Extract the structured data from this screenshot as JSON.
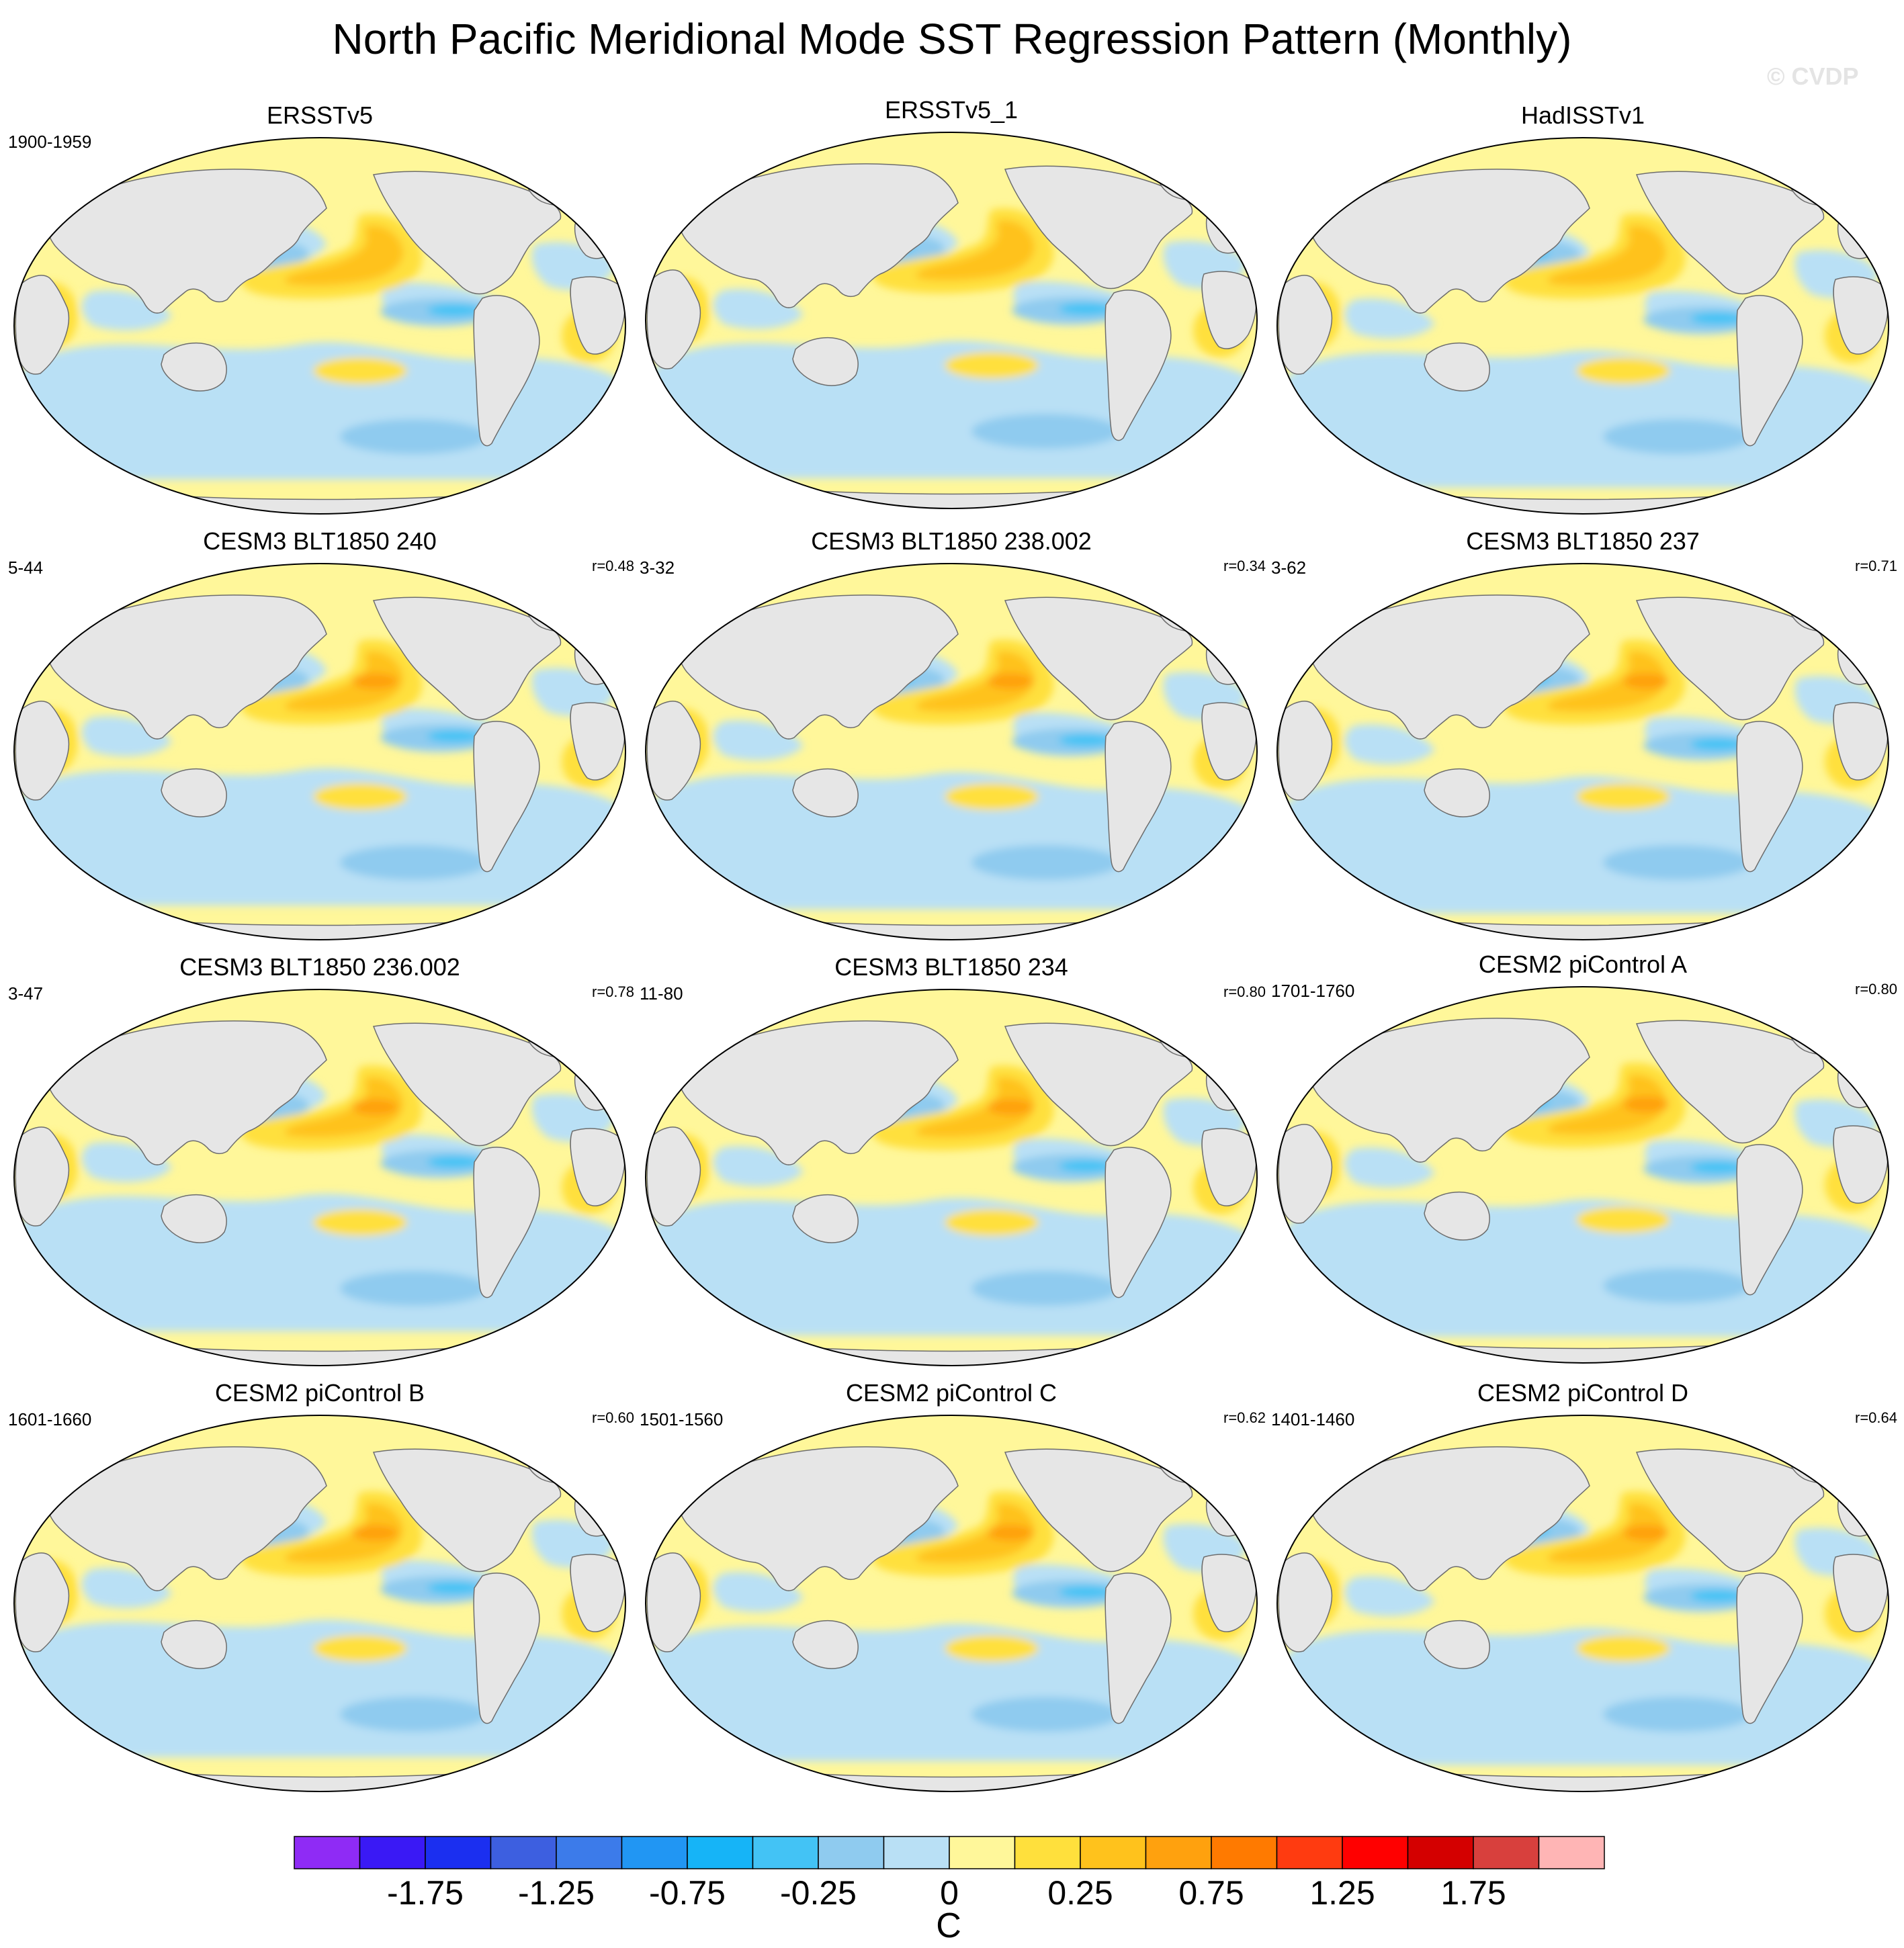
{
  "figure": {
    "title": "North Pacific Meridional Mode SST Regression Pattern (Monthly)",
    "watermark": "© CVDP"
  },
  "panels": [
    {
      "title": "ERSSTv5",
      "period": "1900-1959",
      "correlation": ""
    },
    {
      "title": "ERSSTv5_1",
      "period": "",
      "correlation": ""
    },
    {
      "title": "HadISSTv1",
      "period": "",
      "correlation": ""
    },
    {
      "title": "CESM3 BLT1850 240",
      "period": "5-44",
      "correlation": "r=0.48"
    },
    {
      "title": "CESM3 BLT1850 238.002",
      "period": "3-32",
      "correlation": "r=0.34"
    },
    {
      "title": "CESM3 BLT1850 237",
      "period": "3-62",
      "correlation": "r=0.71"
    },
    {
      "title": "CESM3 BLT1850 236.002",
      "period": "3-47",
      "correlation": "r=0.78"
    },
    {
      "title": "CESM3 BLT1850 234",
      "period": "11-80",
      "correlation": "r=0.80"
    },
    {
      "title": "CESM2 piControl A",
      "period": "1701-1760",
      "correlation": "r=0.80"
    },
    {
      "title": "CESM2 piControl B",
      "period": "1601-1660",
      "correlation": "r=0.60"
    },
    {
      "title": "CESM2 piControl C",
      "period": "1501-1560",
      "correlation": "r=0.62"
    },
    {
      "title": "CESM2 piControl D",
      "period": "1401-1460",
      "correlation": "r=0.64"
    }
  ],
  "colorbar": {
    "unit": "C",
    "tick_labels": [
      "-1.75",
      "-1.25",
      "-0.75",
      "-0.25",
      "0",
      "0.25",
      "0.75",
      "1.25",
      "1.75"
    ],
    "colors": [
      "#8f2bf5",
      "#3a19f5",
      "#1b2ff0",
      "#3d5fe0",
      "#3c7bea",
      "#2196f3",
      "#16b4f7",
      "#43c3f5",
      "#8fcbef",
      "#b9e0f5",
      "#fff79a",
      "#ffe03c",
      "#ffc21c",
      "#ffa10e",
      "#ff7a00",
      "#ff3b10",
      "#ff0000",
      "#d40000",
      "#d8403d",
      "#ffb5b5"
    ]
  },
  "map_colors": {
    "land": "#e6e6e6",
    "coast": "#6d6d6d",
    "neg_light": "#b9e0f5",
    "neg_mid": "#8fcbef",
    "neg_strong": "#43c3f5",
    "neg_deep": "#16b4f7",
    "pos_light": "#fff79a",
    "pos_mid": "#ffe03c",
    "pos_strong": "#ffc21c",
    "pos_deep": "#ffa10e"
  }
}
